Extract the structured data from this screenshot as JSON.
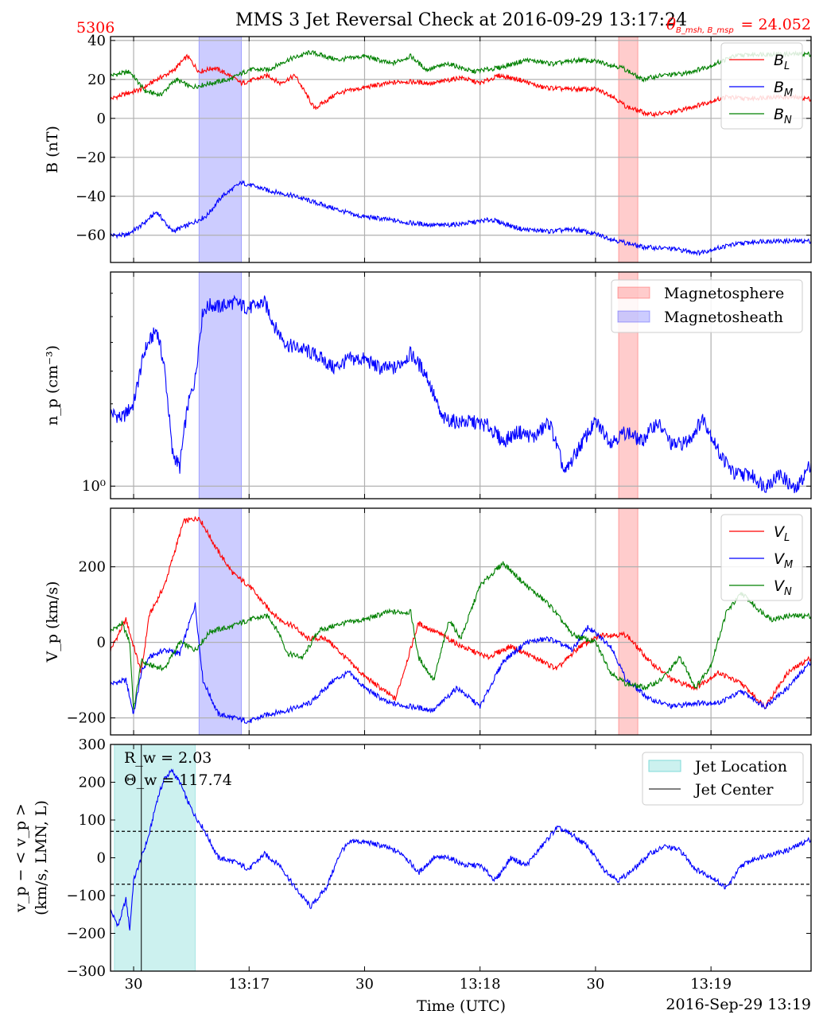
{
  "figure": {
    "title": "MMS 3 Jet Reversal Check at 2016-09-29 13:17:24",
    "corner_left": "5306",
    "corner_right_label": "θ",
    "corner_right_sub": "B_msh, B_msp",
    "corner_right_value": "= 24.052",
    "xlabel": "Time (UTC)",
    "date_label": "2016-Sep-29 13:19",
    "colors": {
      "red": "#ff0000",
      "blue": "#0000ff",
      "green": "#008000",
      "corner": "#ff0000"
    },
    "x_ticks": [
      "30",
      "13:17",
      "30",
      "13:18",
      "30",
      "13:19"
    ]
  },
  "chart_data": [
    {
      "type": "line",
      "panel": "magnetic-field",
      "ylabel": "B (nT)",
      "ylim": [
        -74,
        42
      ],
      "yticks": [
        "40",
        "20",
        "0",
        "−20",
        "−40",
        "−60"
      ],
      "grid": true,
      "legend_position": "top-right",
      "shaded_regions": [
        {
          "kind": "magnetosheath",
          "x": [
            "13:16:47",
            "13:16:58"
          ],
          "color": "#0000ff"
        },
        {
          "kind": "magnetosphere",
          "x": [
            "13:18:36",
            "13:18:41"
          ],
          "color": "#ff0000"
        }
      ],
      "series": [
        {
          "name": "B_L",
          "color": "#ff0000",
          "x": [
            "13:16:24",
            "13:16:27",
            "13:16:32",
            "13:16:36",
            "13:16:40",
            "13:16:44",
            "13:16:47",
            "13:16:51",
            "13:16:55",
            "13:16:58",
            "13:17:05",
            "13:17:08",
            "13:17:12",
            "13:17:17",
            "13:17:23",
            "13:17:28",
            "13:17:33",
            "13:17:40",
            "13:17:48",
            "13:17:55",
            "13:18:00",
            "13:18:05",
            "13:18:10",
            "13:18:16",
            "13:18:22",
            "13:18:30",
            "13:18:34",
            "13:18:38",
            "13:18:44",
            "13:18:50",
            "13:18:57",
            "13:19:04",
            "13:19:09",
            "13:19:15",
            "13:19:20",
            "13:19:26"
          ],
          "values": [
            10,
            12,
            15,
            20,
            24,
            32,
            24,
            26,
            22,
            18,
            22,
            18,
            22,
            5,
            13,
            15,
            17,
            19,
            18,
            21,
            18,
            22,
            20,
            16,
            15,
            15,
            12,
            6,
            2,
            3,
            7,
            11,
            10,
            11,
            11,
            10
          ]
        },
        {
          "name": "B_M",
          "color": "#0000ff",
          "x": [
            "13:16:24",
            "13:16:28",
            "13:16:32",
            "13:16:36",
            "13:16:40",
            "13:16:44",
            "13:16:49",
            "13:16:53",
            "13:16:58",
            "13:17:05",
            "13:17:12",
            "13:17:20",
            "13:17:28",
            "13:17:36",
            "13:17:43",
            "13:17:50",
            "13:17:56",
            "13:18:03",
            "13:18:11",
            "13:18:18",
            "13:18:25",
            "13:18:31",
            "13:18:36",
            "13:18:42",
            "13:18:50",
            "13:18:57",
            "13:19:05",
            "13:19:13",
            "13:19:20",
            "13:19:26"
          ],
          "values": [
            -60,
            -60,
            -55,
            -48,
            -58,
            -55,
            -50,
            -40,
            -33,
            -37,
            -40,
            -45,
            -50,
            -52,
            -54,
            -55,
            -54,
            -52,
            -57,
            -58,
            -57,
            -60,
            -63,
            -66,
            -67,
            -69,
            -65,
            -63,
            -63,
            -63
          ]
        },
        {
          "name": "B_N",
          "color": "#008000",
          "x": [
            "13:16:24",
            "13:16:29",
            "13:16:33",
            "13:16:37",
            "13:16:41",
            "13:16:45",
            "13:16:50",
            "13:16:55",
            "13:17:00",
            "13:17:05",
            "13:17:10",
            "13:17:16",
            "13:17:23",
            "13:17:30",
            "13:17:37",
            "13:17:42",
            "13:17:46",
            "13:17:52",
            "13:17:58",
            "13:18:05",
            "13:18:12",
            "13:18:19",
            "13:18:26",
            "13:18:31",
            "13:18:37",
            "13:18:42",
            "13:18:47",
            "13:18:53",
            "13:19:00",
            "13:19:06",
            "13:19:12",
            "13:19:19",
            "13:19:26"
          ],
          "values": [
            22,
            24,
            14,
            12,
            20,
            16,
            18,
            20,
            25,
            25,
            30,
            34,
            30,
            32,
            28,
            32,
            25,
            28,
            24,
            26,
            30,
            28,
            30,
            29,
            26,
            20,
            22,
            23,
            27,
            32,
            33,
            33,
            33
          ]
        }
      ]
    },
    {
      "type": "line",
      "panel": "density",
      "ylabel": "n_p (cm⁻³)",
      "yscale": "log",
      "ylim": [
        0.95,
        2.4
      ],
      "yticks": [
        "10⁰"
      ],
      "grid": true,
      "legend_position": "top-right",
      "legend": [
        "Magnetosphere",
        "Magnetosheath"
      ],
      "series": [
        {
          "name": "n_p",
          "color": "#0000ff",
          "x": [
            "13:16:24",
            "13:16:27",
            "13:16:30",
            "13:16:33",
            "13:16:36",
            "13:16:38",
            "13:16:40",
            "13:16:42",
            "13:16:44",
            "13:16:46",
            "13:16:48",
            "13:16:50",
            "13:16:52",
            "13:16:56",
            "13:17:00",
            "13:17:04",
            "13:17:07",
            "13:17:10",
            "13:17:14",
            "13:17:18",
            "13:17:22",
            "13:17:26",
            "13:17:30",
            "13:17:34",
            "13:17:38",
            "13:17:42",
            "13:17:46",
            "13:17:50",
            "13:17:54",
            "13:17:58",
            "13:18:02",
            "13:18:06",
            "13:18:10",
            "13:18:14",
            "13:18:18",
            "13:18:22",
            "13:18:26",
            "13:18:30",
            "13:18:34",
            "13:18:38",
            "13:18:42",
            "13:18:46",
            "13:18:50",
            "13:18:54",
            "13:18:58",
            "13:19:02",
            "13:19:06",
            "13:19:10",
            "13:19:14",
            "13:19:18",
            "13:19:22",
            "13:19:26"
          ],
          "values": [
            1.35,
            1.32,
            1.4,
            1.75,
            1.9,
            1.62,
            1.15,
            1.08,
            1.38,
            1.55,
            2.05,
            2.1,
            2.08,
            2.12,
            2.07,
            2.12,
            1.9,
            1.78,
            1.75,
            1.7,
            1.62,
            1.68,
            1.68,
            1.62,
            1.62,
            1.72,
            1.58,
            1.32,
            1.3,
            1.3,
            1.28,
            1.2,
            1.25,
            1.22,
            1.3,
            1.05,
            1.18,
            1.3,
            1.2,
            1.25,
            1.2,
            1.3,
            1.18,
            1.2,
            1.32,
            1.15,
            1.05,
            1.05,
            1.0,
            1.05,
            0.98,
            1.1
          ]
        }
      ]
    },
    {
      "type": "line",
      "panel": "velocity",
      "ylabel": "V_p (km/s)",
      "ylim": [
        -245,
        355
      ],
      "yticks": [
        "200",
        "0",
        "−200"
      ],
      "grid": true,
      "legend_position": "top-right",
      "series": [
        {
          "name": "V_L",
          "color": "#ff0000",
          "x": [
            "13:16:24",
            "13:16:28",
            "13:16:32",
            "13:16:34",
            "13:16:38",
            "13:16:43",
            "13:16:47",
            "13:16:52",
            "13:16:56",
            "13:17:00",
            "13:17:04",
            "13:17:08",
            "13:17:12",
            "13:17:15",
            "13:17:20",
            "13:17:26",
            "13:17:30",
            "13:17:38",
            "13:17:44",
            "13:17:50",
            "13:17:55",
            "13:18:02",
            "13:18:08",
            "13:18:14",
            "13:18:20",
            "13:18:26",
            "13:18:32",
            "13:18:38",
            "13:18:44",
            "13:18:50",
            "13:18:56",
            "13:19:02",
            "13:19:08",
            "13:19:14",
            "13:19:20",
            "13:19:26"
          ],
          "values": [
            -20,
            60,
            -80,
            70,
            150,
            320,
            330,
            240,
            180,
            150,
            100,
            60,
            40,
            10,
            10,
            -50,
            -90,
            -150,
            50,
            20,
            -10,
            -40,
            -10,
            -40,
            -70,
            -10,
            20,
            20,
            -50,
            -100,
            -120,
            -80,
            -110,
            -170,
            -80,
            -40
          ]
        },
        {
          "name": "V_M",
          "color": "#0000ff",
          "x": [
            "13:16:24",
            "13:16:28",
            "13:16:30",
            "13:16:32",
            "13:16:34",
            "13:16:38",
            "13:16:42",
            "13:16:46",
            "13:16:48",
            "13:16:52",
            "13:16:56",
            "13:17:00",
            "13:17:05",
            "13:17:10",
            "13:17:16",
            "13:17:22",
            "13:17:26",
            "13:17:30",
            "13:17:36",
            "13:17:42",
            "13:17:48",
            "13:17:54",
            "13:18:00",
            "13:18:06",
            "13:18:12",
            "13:18:18",
            "13:18:24",
            "13:18:28",
            "13:18:34",
            "13:18:38",
            "13:18:44",
            "13:18:50",
            "13:18:56",
            "13:19:02",
            "13:19:08",
            "13:19:14",
            "13:19:20",
            "13:19:26"
          ],
          "values": [
            -110,
            -100,
            -190,
            -80,
            -40,
            -20,
            -30,
            100,
            -100,
            -190,
            -200,
            -210,
            -190,
            -180,
            -160,
            -100,
            -80,
            -120,
            -160,
            -170,
            -180,
            -120,
            -170,
            -50,
            0,
            10,
            -20,
            40,
            -10,
            -100,
            -150,
            -170,
            -160,
            -160,
            -130,
            -170,
            -120,
            -50
          ]
        },
        {
          "name": "V_N",
          "color": "#008000",
          "x": [
            "13:16:24",
            "13:16:27",
            "13:16:29",
            "13:16:30",
            "13:16:32",
            "13:16:34",
            "13:16:38",
            "13:16:42",
            "13:16:46",
            "13:16:50",
            "13:16:55",
            "13:17:00",
            "13:17:05",
            "13:17:08",
            "13:17:10",
            "13:17:14",
            "13:17:18",
            "13:17:24",
            "13:17:30",
            "13:17:36",
            "13:17:42",
            "13:17:44",
            "13:17:48",
            "13:17:52",
            "13:17:55",
            "13:18:00",
            "13:18:06",
            "13:18:12",
            "13:18:18",
            "13:18:24",
            "13:18:30",
            "13:18:34",
            "13:18:38",
            "13:18:43",
            "13:18:47",
            "13:18:52",
            "13:18:56",
            "13:19:00",
            "13:19:04",
            "13:19:08",
            "13:19:12",
            "13:19:16",
            "13:19:20",
            "13:19:26"
          ],
          "values": [
            30,
            50,
            0,
            -180,
            -50,
            -60,
            -70,
            0,
            -20,
            30,
            40,
            60,
            70,
            20,
            -30,
            -40,
            30,
            50,
            60,
            80,
            80,
            -40,
            -100,
            60,
            10,
            150,
            210,
            150,
            100,
            20,
            0,
            -80,
            -110,
            -120,
            -100,
            -40,
            -120,
            -60,
            80,
            130,
            90,
            60,
            70,
            70
          ]
        }
      ]
    },
    {
      "type": "line",
      "panel": "jet",
      "ylabel": "v_p − < v_p >",
      "ylabel2": "(km/s, LMN, L)",
      "ylim": [
        -300,
        300
      ],
      "yticks": [
        "300",
        "200",
        "100",
        "0",
        "−100",
        "−200",
        "−300"
      ],
      "grid": false,
      "legend_position": "top-right",
      "legend": [
        "Jet Location",
        "Jet Center"
      ],
      "annotations": [
        "R_w = 2.03",
        "Θ_w = 117.74"
      ],
      "R_w": 2.03,
      "Theta_w": 117.74,
      "jet_location": [
        "13:16:25",
        "13:16:46"
      ],
      "jet_center": "13:16:32",
      "thresholds": [
        70,
        -70
      ],
      "series": [
        {
          "name": "v_p",
          "color": "#0000ff",
          "x": [
            "13:16:24",
            "13:16:26",
            "13:16:28",
            "13:16:29",
            "13:16:30",
            "13:16:32",
            "13:16:34",
            "13:16:36",
            "13:16:38",
            "13:16:40",
            "13:16:42",
            "13:16:44",
            "13:16:46",
            "13:16:48",
            "13:16:50",
            "13:16:52",
            "13:16:56",
            "13:17:00",
            "13:17:04",
            "13:17:08",
            "13:17:12",
            "13:17:16",
            "13:17:20",
            "13:17:24",
            "13:17:27",
            "13:17:31",
            "13:17:35",
            "13:17:40",
            "13:17:44",
            "13:17:48",
            "13:17:52",
            "13:17:56",
            "13:18:00",
            "13:18:04",
            "13:18:08",
            "13:18:12",
            "13:18:16",
            "13:18:20",
            "13:18:24",
            "13:18:28",
            "13:18:32",
            "13:18:36",
            "13:18:40",
            "13:18:44",
            "13:18:48",
            "13:18:52",
            "13:18:56",
            "13:19:00",
            "13:19:04",
            "13:19:08",
            "13:19:12",
            "13:19:16",
            "13:19:20",
            "13:19:26"
          ],
          "values": [
            -140,
            -180,
            -110,
            -190,
            -60,
            0,
            60,
            150,
            210,
            230,
            200,
            150,
            110,
            80,
            40,
            0,
            -10,
            -30,
            10,
            -20,
            -80,
            -130,
            -80,
            20,
            45,
            40,
            30,
            10,
            -40,
            0,
            0,
            -20,
            -20,
            -60,
            0,
            -20,
            30,
            80,
            60,
            30,
            -30,
            -60,
            -30,
            10,
            30,
            20,
            -30,
            -50,
            -80,
            -20,
            0,
            10,
            20,
            50
          ]
        }
      ]
    }
  ]
}
